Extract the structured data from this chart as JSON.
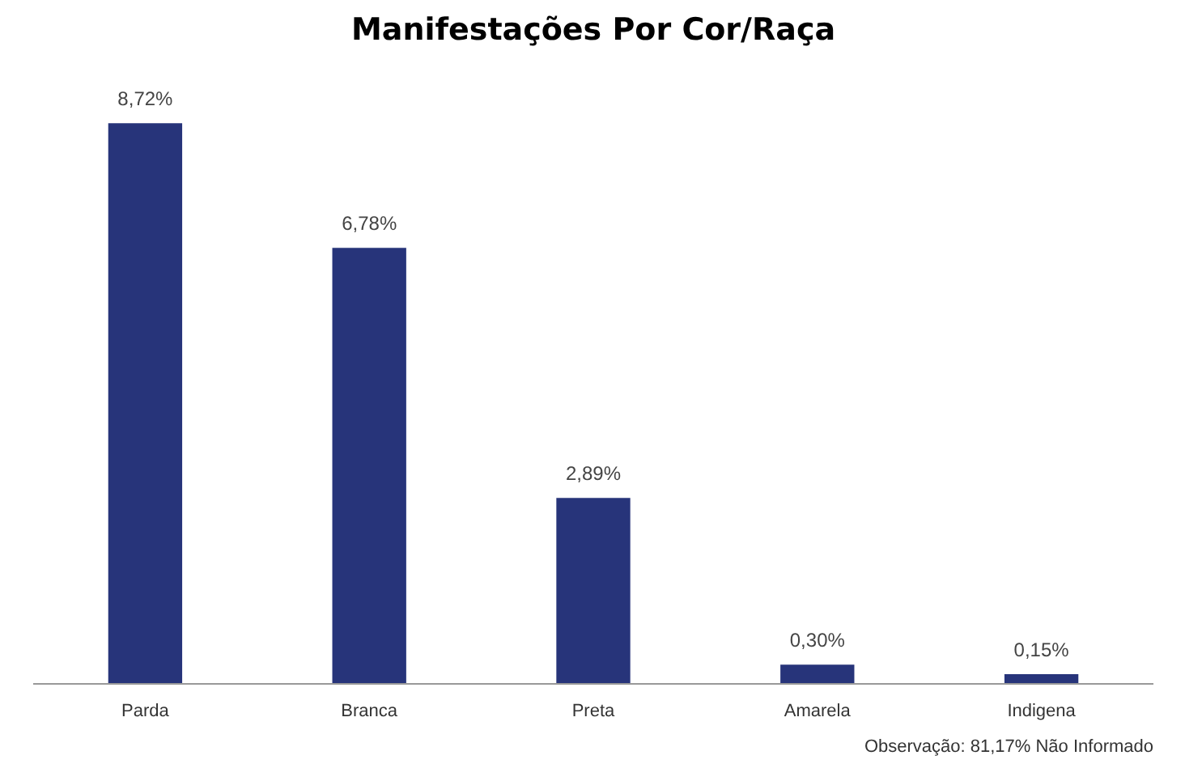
{
  "chart_data": {
    "type": "bar",
    "title": "Manifestações Por Cor/Raça",
    "categories": [
      "Parda",
      "Branca",
      "Preta",
      "Amarela",
      "Indigena"
    ],
    "values": [
      8.72,
      6.78,
      2.89,
      0.3,
      0.15
    ],
    "value_labels": [
      "8,72%",
      "6,78%",
      "2,89%",
      "0,30%",
      "0,15%"
    ],
    "color": "#27347a",
    "grid": false,
    "annotations": [
      "Observação: 81,17% Não Informado"
    ]
  }
}
